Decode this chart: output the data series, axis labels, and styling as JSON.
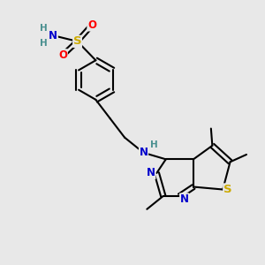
{
  "bg_color": "#e8e8e8",
  "bond_color": "#000000",
  "bond_width": 1.5,
  "atom_colors": {
    "N": "#0000cc",
    "O": "#ff0000",
    "S_thio": "#ccaa00",
    "S_sulfo": "#ccaa00",
    "H": "#4a9090",
    "C": "#000000"
  },
  "font_size_atom": 8.5,
  "font_size_H": 7.5
}
